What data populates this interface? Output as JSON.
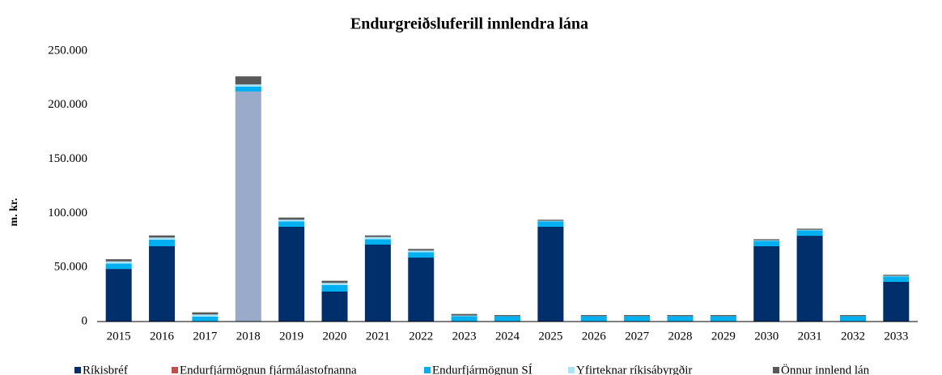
{
  "chart_data": {
    "type": "stacked_bar",
    "title": "Endurgreiðsluferill innlendra lána",
    "ylabel": "m. kr.",
    "categories": [
      "2015",
      "2016",
      "2017",
      "2018",
      "2019",
      "2020",
      "2021",
      "2022",
      "2023",
      "2024",
      "2025",
      "2026",
      "2027",
      "2028",
      "2029",
      "2030",
      "2031",
      "2032",
      "2033"
    ],
    "series": [
      {
        "name": "Ríkisbréf",
        "color": "#002f6c",
        "values": [
          48600,
          69600,
          0,
          212600,
          87600,
          27700,
          71100,
          59100,
          0,
          0,
          87600,
          0,
          0,
          0,
          0,
          69600,
          79300,
          0,
          36700
        ]
      },
      {
        "name": "Endurfjármögnun fjármálastofnanna",
        "color": "#c0504d",
        "values": [
          0,
          0,
          0,
          0,
          0,
          0,
          0,
          0,
          0,
          0,
          0,
          0,
          0,
          0,
          0,
          0,
          0,
          0,
          0
        ]
      },
      {
        "name": "Endurfjármögnun SÍ",
        "color": "#00b0f0",
        "values": [
          5000,
          6000,
          4500,
          4500,
          5000,
          6000,
          5000,
          5000,
          5000,
          5000,
          5000,
          5000,
          5000,
          5000,
          5000,
          5000,
          5000,
          5000,
          5000
        ]
      },
      {
        "name": "Yfirteknar ríkisábyrgðir",
        "color": "#a6e4f7",
        "values": [
          2000,
          2000,
          2000,
          2000,
          1500,
          2000,
          2000,
          1500,
          500,
          0,
          500,
          0,
          0,
          0,
          0,
          500,
          500,
          0,
          500
        ]
      },
      {
        "name": "Önnur innlend lán",
        "color": "#595959",
        "values": [
          2000,
          2000,
          2000,
          7500,
          2000,
          2000,
          1500,
          1500,
          1500,
          1000,
          1000,
          1000,
          1000,
          1000,
          1000,
          1000,
          1000,
          1000,
          1000
        ]
      }
    ],
    "highlight": {
      "series": 0,
      "index": 3,
      "color": "#9aabc9"
    },
    "ylim": [
      0,
      250000
    ],
    "yticks": [
      0,
      {
        "value": 50000,
        "label": "50.000"
      },
      {
        "value": 100000,
        "label": "100.000"
      },
      {
        "value": 150000,
        "label": "150.000"
      },
      {
        "value": 200000,
        "label": "200.000"
      },
      {
        "value": 250000,
        "label": "250.000"
      }
    ],
    "grid": false,
    "legend": "bottom"
  }
}
